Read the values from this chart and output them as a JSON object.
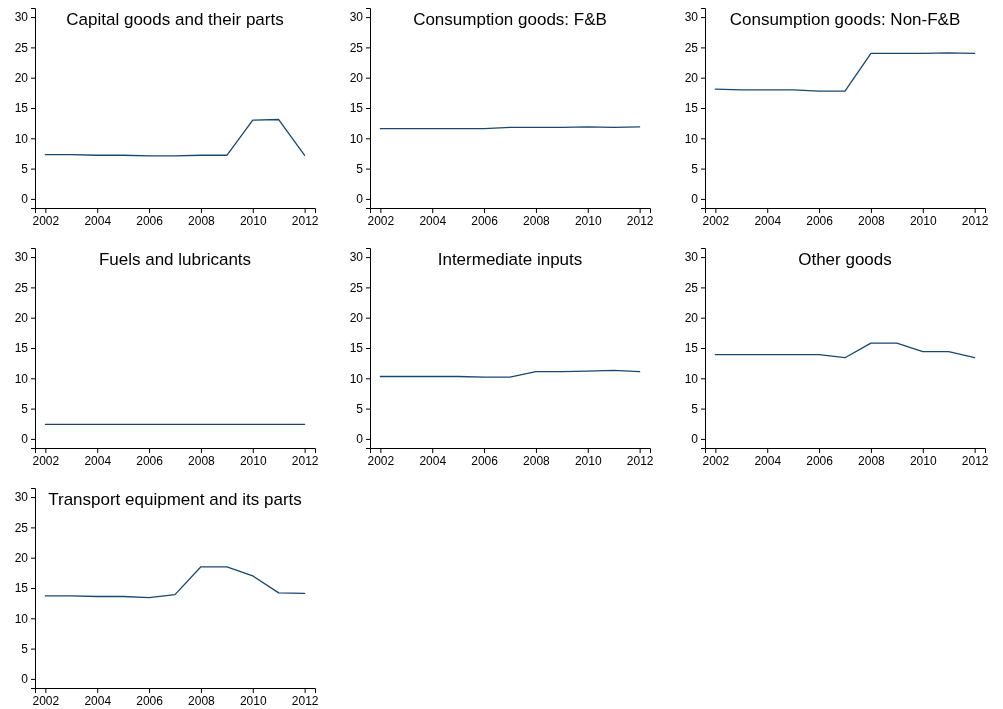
{
  "chart_data": [
    {
      "type": "line",
      "title": "Capital goods and their parts",
      "x": [
        2002,
        2003,
        2004,
        2005,
        2006,
        2007,
        2008,
        2009,
        2010,
        2011,
        2012
      ],
      "series": [
        {
          "color": "#1a476f",
          "values": [
            7.3,
            7.3,
            7.2,
            7.2,
            7.1,
            7.1,
            7.2,
            7.2,
            13.0,
            13.1,
            7.2
          ]
        }
      ],
      "xlim": [
        2001.6,
        2012.4
      ],
      "xticks": [
        2002,
        2004,
        2006,
        2008,
        2010,
        2012
      ],
      "ylim": [
        -1.5,
        31.5
      ],
      "yticks": [
        0,
        5,
        10,
        15,
        20,
        25,
        30
      ]
    },
    {
      "type": "line",
      "title": "Consumption goods: F&B",
      "x": [
        2002,
        2003,
        2004,
        2005,
        2006,
        2007,
        2008,
        2009,
        2010,
        2011,
        2012
      ],
      "series": [
        {
          "color": "#1a476f",
          "values": [
            11.6,
            11.6,
            11.6,
            11.6,
            11.6,
            11.8,
            11.8,
            11.8,
            11.9,
            11.8,
            11.9
          ]
        }
      ],
      "xlim": [
        2001.6,
        2012.4
      ],
      "xticks": [
        2002,
        2004,
        2006,
        2008,
        2010,
        2012
      ],
      "ylim": [
        -1.5,
        31.5
      ],
      "yticks": [
        0,
        5,
        10,
        15,
        20,
        25,
        30
      ]
    },
    {
      "type": "line",
      "title": "Consumption goods: Non-F&B",
      "x": [
        2002,
        2003,
        2004,
        2005,
        2006,
        2007,
        2008,
        2009,
        2010,
        2011,
        2012
      ],
      "series": [
        {
          "color": "#1a476f",
          "values": [
            18.1,
            18.0,
            18.0,
            18.0,
            17.8,
            17.8,
            24.0,
            24.0,
            24.0,
            24.1,
            24.0
          ]
        }
      ],
      "xlim": [
        2001.6,
        2012.4
      ],
      "xticks": [
        2002,
        2004,
        2006,
        2008,
        2010,
        2012
      ],
      "ylim": [
        -1.5,
        31.5
      ],
      "yticks": [
        0,
        5,
        10,
        15,
        20,
        25,
        30
      ]
    },
    {
      "type": "line",
      "title": "Fuels and lubricants",
      "x": [
        2002,
        2003,
        2004,
        2005,
        2006,
        2007,
        2008,
        2009,
        2010,
        2011,
        2012
      ],
      "series": [
        {
          "color": "#1a476f",
          "values": [
            2.4,
            2.4,
            2.4,
            2.4,
            2.4,
            2.4,
            2.4,
            2.4,
            2.4,
            2.4,
            2.4
          ]
        }
      ],
      "xlim": [
        2001.6,
        2012.4
      ],
      "xticks": [
        2002,
        2004,
        2006,
        2008,
        2010,
        2012
      ],
      "ylim": [
        -1.5,
        31.5
      ],
      "yticks": [
        0,
        5,
        10,
        15,
        20,
        25,
        30
      ]
    },
    {
      "type": "line",
      "title": "Intermediate inputs",
      "x": [
        2002,
        2003,
        2004,
        2005,
        2006,
        2007,
        2008,
        2009,
        2010,
        2011,
        2012
      ],
      "series": [
        {
          "color": "#1a476f",
          "values": [
            10.3,
            10.3,
            10.3,
            10.3,
            10.2,
            10.2,
            11.1,
            11.1,
            11.2,
            11.3,
            11.1
          ]
        }
      ],
      "xlim": [
        2001.6,
        2012.4
      ],
      "xticks": [
        2002,
        2004,
        2006,
        2008,
        2010,
        2012
      ],
      "ylim": [
        -1.5,
        31.5
      ],
      "yticks": [
        0,
        5,
        10,
        15,
        20,
        25,
        30
      ]
    },
    {
      "type": "line",
      "title": "Other goods",
      "x": [
        2002,
        2003,
        2004,
        2005,
        2006,
        2007,
        2008,
        2009,
        2010,
        2011,
        2012
      ],
      "series": [
        {
          "color": "#1a476f",
          "values": [
            13.9,
            13.9,
            13.9,
            13.9,
            13.9,
            13.4,
            15.8,
            15.8,
            14.4,
            14.4,
            13.4
          ]
        }
      ],
      "xlim": [
        2001.6,
        2012.4
      ],
      "xticks": [
        2002,
        2004,
        2006,
        2008,
        2010,
        2012
      ],
      "ylim": [
        -1.5,
        31.5
      ],
      "yticks": [
        0,
        5,
        10,
        15,
        20,
        25,
        30
      ]
    },
    {
      "type": "line",
      "title": "Transport equipment and its parts",
      "x": [
        2002,
        2003,
        2004,
        2005,
        2006,
        2007,
        2008,
        2009,
        2010,
        2011,
        2012
      ],
      "series": [
        {
          "color": "#1a476f",
          "values": [
            13.7,
            13.7,
            13.6,
            13.6,
            13.4,
            13.9,
            18.5,
            18.5,
            17.0,
            14.2,
            14.1
          ]
        }
      ],
      "xlim": [
        2001.6,
        2012.4
      ],
      "xticks": [
        2002,
        2004,
        2006,
        2008,
        2010,
        2012
      ],
      "ylim": [
        -1.5,
        31.5
      ],
      "yticks": [
        0,
        5,
        10,
        15,
        20,
        25,
        30
      ]
    }
  ]
}
